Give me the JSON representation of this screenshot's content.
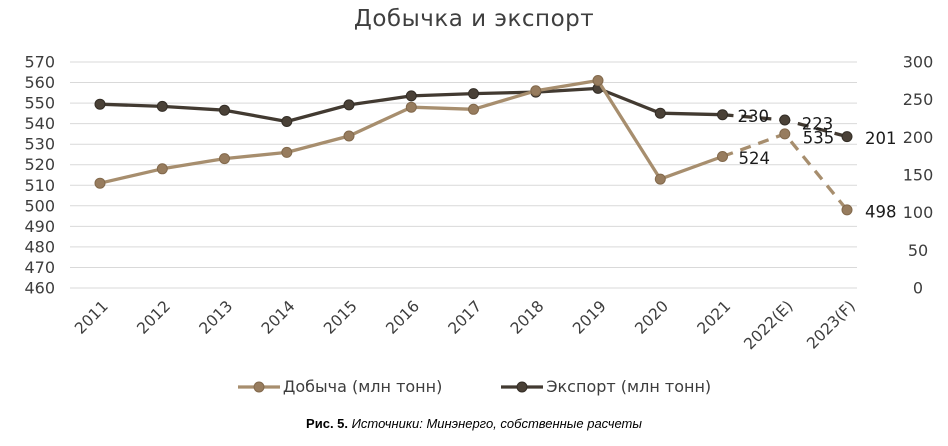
{
  "title": "Добычка и экспорт",
  "caption": {
    "prefix": "Рис. 5.",
    "text": " Источники: Минэнерго, собственные расчеты"
  },
  "colors": {
    "background": "#FFFFFF",
    "gridline": "#D9D9D9",
    "axis_text": "#3D3D3D",
    "title_text": "#3F3F3F",
    "data_label": "#1A1A1A"
  },
  "chart_data": {
    "type": "line",
    "title": "Добычка и экспорт",
    "categories": [
      "2011",
      "2012",
      "2013",
      "2014",
      "2015",
      "2016",
      "2017",
      "2018",
      "2019",
      "2020",
      "2021",
      "2022(E)",
      "2023(F)"
    ],
    "series": [
      {
        "name": "Добыча (млн тонн)",
        "axis": "left",
        "color": "#A78E6E",
        "marker_color": "#977C5E",
        "marker_stroke": "#82694C",
        "values": [
          511,
          518,
          523,
          526,
          534,
          548,
          547,
          556,
          561,
          513,
          524,
          535,
          498
        ],
        "forecast_from_index": 10,
        "point_labels": [
          {
            "i": 10,
            "text": "524",
            "dx": 16,
            "dy": 2
          },
          {
            "i": 11,
            "text": "535",
            "dx": 18,
            "dy": 4
          },
          {
            "i": 12,
            "text": "498",
            "dx": 18,
            "dy": 2
          }
        ]
      },
      {
        "name": "Экспорт (млн тонн)",
        "axis": "right",
        "color": "#423A31",
        "marker_color": "#4A4137",
        "marker_stroke": "#332D26",
        "values": [
          244,
          241,
          236,
          221,
          243,
          255,
          258,
          260,
          265,
          232,
          230,
          223,
          201
        ],
        "forecast_from_index": 10,
        "point_labels": [
          {
            "i": 10,
            "text": "230",
            "dx": 15,
            "dy": 2
          },
          {
            "i": 11,
            "text": "223",
            "dx": 17,
            "dy": 4
          },
          {
            "i": 12,
            "text": "201",
            "dx": 18,
            "dy": 2
          }
        ]
      }
    ],
    "left_axis": {
      "min": 460,
      "max": 570,
      "step": 10,
      "ticks": [
        570,
        560,
        550,
        540,
        530,
        520,
        510,
        500,
        490,
        480,
        470,
        460
      ]
    },
    "right_axis": {
      "min": 0,
      "max": 300,
      "step": 50,
      "ticks": [
        300,
        250,
        200,
        150,
        100,
        50,
        0
      ]
    },
    "grid": "horizontal",
    "legend_position": "bottom",
    "forecast_style": "dashed"
  }
}
